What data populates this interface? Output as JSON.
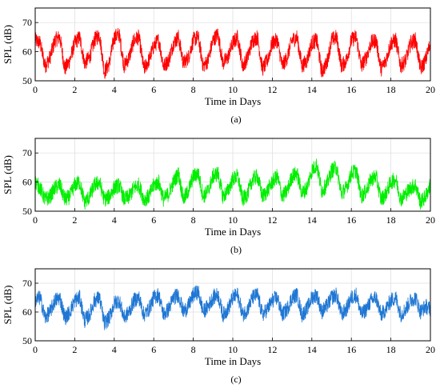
{
  "chart_data": [
    {
      "type": "line",
      "panel_label": "(a)",
      "xlabel": "Time in Days",
      "ylabel": "SPL (dB)",
      "xlim": [
        0,
        20
      ],
      "ylim": [
        50,
        75
      ],
      "xticks": [
        0,
        2,
        4,
        6,
        8,
        10,
        12,
        14,
        16,
        18,
        20
      ],
      "yticks": [
        50,
        60,
        70
      ],
      "grid": true,
      "color": "#ff0000",
      "series": [
        {
          "x": [
            0,
            0.25,
            0.5,
            0.75,
            1,
            1.25,
            1.5,
            1.75,
            2,
            2.25,
            2.5,
            2.75,
            3,
            3.25,
            3.5,
            3.75,
            4,
            4.25,
            4.5,
            4.75,
            5,
            5.25,
            5.5,
            5.75,
            6,
            6.25,
            6.5,
            6.75,
            7,
            7.25,
            7.5,
            7.75,
            8,
            8.25,
            8.5,
            8.75,
            9,
            9.25,
            9.5,
            9.75,
            10,
            10.25,
            10.5,
            10.75,
            11,
            11.25,
            11.5,
            11.75,
            12,
            12.25,
            12.5,
            12.75,
            13,
            13.25,
            13.5,
            13.75,
            14,
            14.25,
            14.5,
            14.75,
            15,
            15.25,
            15.5,
            15.75,
            16,
            16.25,
            16.5,
            16.75,
            17,
            17.25,
            17.5,
            17.75,
            18,
            18.25,
            18.5,
            18.75,
            19,
            19.25,
            19.5,
            19.75,
            20
          ],
          "y": [
            64,
            63,
            55,
            58,
            64,
            65,
            54,
            57,
            63,
            65,
            56,
            58,
            64,
            66,
            53,
            56,
            65,
            66,
            55,
            58,
            64,
            65,
            54,
            57,
            62,
            64,
            55,
            57,
            63,
            65,
            56,
            58,
            64,
            65,
            55,
            57,
            64,
            66,
            56,
            58,
            63,
            65,
            55,
            58,
            64,
            65,
            54,
            57,
            63,
            64,
            55,
            58,
            64,
            65,
            55,
            57,
            63,
            64,
            53,
            56,
            64,
            65,
            55,
            57,
            64,
            65,
            55,
            58,
            63,
            64,
            54,
            57,
            63,
            64,
            55,
            57,
            63,
            64,
            54,
            57,
            63
          ]
        }
      ]
    },
    {
      "type": "line",
      "panel_label": "(b)",
      "xlabel": "Time in Days",
      "ylabel": "SPL (dB)",
      "xlim": [
        0,
        20
      ],
      "ylim": [
        50,
        75
      ],
      "xticks": [
        0,
        2,
        4,
        6,
        8,
        10,
        12,
        14,
        16,
        18,
        20
      ],
      "yticks": [
        50,
        60,
        70
      ],
      "grid": true,
      "color": "#00ee00",
      "series": [
        {
          "x": [
            0,
            0.25,
            0.5,
            0.75,
            1,
            1.25,
            1.5,
            1.75,
            2,
            2.25,
            2.5,
            2.75,
            3,
            3.25,
            3.5,
            3.75,
            4,
            4.25,
            4.5,
            4.75,
            5,
            5.25,
            5.5,
            5.75,
            6,
            6.25,
            6.5,
            6.75,
            7,
            7.25,
            7.5,
            7.75,
            8,
            8.25,
            8.5,
            8.75,
            9,
            9.25,
            9.5,
            9.75,
            10,
            10.25,
            10.5,
            10.75,
            11,
            11.25,
            11.5,
            11.75,
            12,
            12.25,
            12.5,
            12.75,
            13,
            13.25,
            13.5,
            13.75,
            14,
            14.25,
            14.5,
            14.75,
            15,
            15.25,
            15.5,
            15.75,
            16,
            16.25,
            16.5,
            16.75,
            17,
            17.25,
            17.5,
            17.75,
            18,
            18.25,
            18.5,
            18.75,
            19,
            19.25,
            19.5,
            19.75,
            20
          ],
          "y": [
            60,
            58,
            54,
            55,
            58,
            59,
            54,
            55,
            59,
            60,
            53,
            55,
            59,
            60,
            54,
            55,
            58,
            59,
            54,
            55,
            58,
            59,
            54,
            55,
            59,
            60,
            54,
            56,
            60,
            63,
            54,
            57,
            62,
            63,
            55,
            57,
            62,
            63,
            55,
            57,
            61,
            62,
            54,
            56,
            61,
            62,
            55,
            57,
            60,
            62,
            55,
            57,
            62,
            63,
            56,
            58,
            64,
            66,
            57,
            59,
            64,
            65,
            56,
            58,
            63,
            64,
            55,
            57,
            61,
            62,
            54,
            56,
            60,
            61,
            54,
            56,
            58,
            59,
            53,
            55,
            59
          ]
        }
      ]
    },
    {
      "type": "line",
      "panel_label": "(c)",
      "xlabel": "Time in Days",
      "ylabel": "SPL (dB)",
      "xlim": [
        0,
        20
      ],
      "ylim": [
        50,
        75
      ],
      "xticks": [
        0,
        2,
        4,
        6,
        8,
        10,
        12,
        14,
        16,
        18,
        20
      ],
      "yticks": [
        50,
        60,
        70
      ],
      "grid": true,
      "color": "#1f77d4",
      "series": [
        {
          "x": [
            0,
            0.25,
            0.5,
            0.75,
            1,
            1.25,
            1.5,
            1.75,
            2,
            2.25,
            2.5,
            2.75,
            3,
            3.25,
            3.5,
            3.75,
            4,
            4.25,
            4.5,
            4.75,
            5,
            5.25,
            5.5,
            5.75,
            6,
            6.25,
            6.5,
            6.75,
            7,
            7.25,
            7.5,
            7.75,
            8,
            8.25,
            8.5,
            8.75,
            9,
            9.25,
            9.5,
            9.75,
            10,
            10.25,
            10.5,
            10.75,
            11,
            11.25,
            11.5,
            11.75,
            12,
            12.25,
            12.5,
            12.75,
            13,
            13.25,
            13.5,
            13.75,
            14,
            14.25,
            14.5,
            14.75,
            15,
            15.25,
            15.5,
            15.75,
            16,
            16.25,
            16.5,
            16.75,
            17,
            17.25,
            17.5,
            17.75,
            18,
            18.25,
            18.5,
            18.75,
            19,
            19.25,
            19.5,
            19.75,
            20
          ],
          "y": [
            64,
            65,
            58,
            60,
            64,
            65,
            58,
            60,
            64,
            65,
            57,
            59,
            64,
            65,
            56,
            58,
            63,
            64,
            58,
            60,
            64,
            65,
            59,
            61,
            65,
            66,
            59,
            61,
            65,
            66,
            60,
            62,
            66,
            67,
            60,
            62,
            65,
            66,
            59,
            61,
            65,
            66,
            59,
            61,
            65,
            66,
            59,
            61,
            64,
            65,
            59,
            61,
            65,
            66,
            59,
            61,
            65,
            66,
            60,
            62,
            65,
            66,
            59,
            61,
            65,
            66,
            59,
            61,
            64,
            65,
            59,
            61,
            64,
            65,
            59,
            61,
            64,
            65,
            60,
            62,
            61
          ]
        }
      ]
    }
  ]
}
